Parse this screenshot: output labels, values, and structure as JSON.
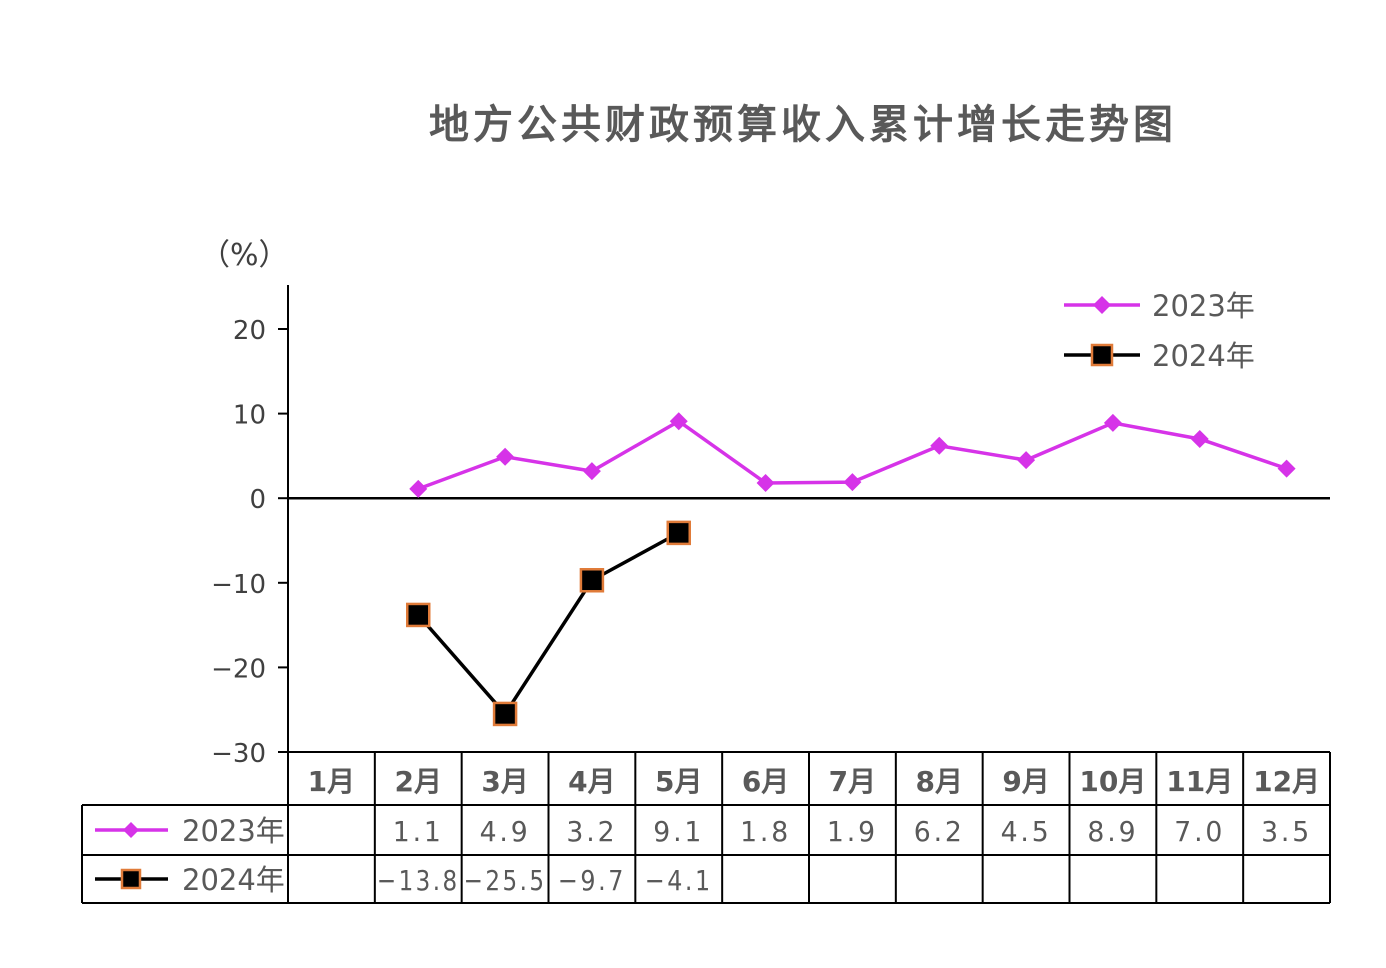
{
  "chart_data": {
    "type": "line",
    "title": "地方公共财政预算收入累计增长走势图",
    "ylabel": "（%）",
    "ylim": [
      -30,
      25
    ],
    "yticks": [
      20,
      10,
      0,
      -10,
      -20,
      -30
    ],
    "ytick_labels": [
      "20",
      "10",
      "0",
      "−10",
      "−20",
      "−30"
    ],
    "categories": [
      "1月",
      "2月",
      "3月",
      "4月",
      "5月",
      "6月",
      "7月",
      "8月",
      "9月",
      "10月",
      "11月",
      "12月"
    ],
    "legend_position": "top-right",
    "series": [
      {
        "name": "2023年",
        "color": "#d633e8",
        "marker": "diamond",
        "values": [
          null,
          1.1,
          4.9,
          3.2,
          9.1,
          1.8,
          1.9,
          6.2,
          4.5,
          8.9,
          7.0,
          3.5
        ],
        "labels": [
          "",
          "1.1",
          "4.9",
          "3.2",
          "9.1",
          "1.8",
          "1.9",
          "6.2",
          "4.5",
          "8.9",
          "7.0",
          "3.5"
        ]
      },
      {
        "name": "2024年",
        "color": "#000000",
        "marker": "square",
        "marker_edge": "#e07b39",
        "values": [
          null,
          -13.8,
          -25.5,
          -9.7,
          -4.1,
          null,
          null,
          null,
          null,
          null,
          null,
          null
        ],
        "labels": [
          "",
          "−13.8",
          "−25.5",
          "−9.7",
          "−4.1",
          "",
          "",
          "",
          "",
          "",
          "",
          ""
        ]
      }
    ]
  }
}
